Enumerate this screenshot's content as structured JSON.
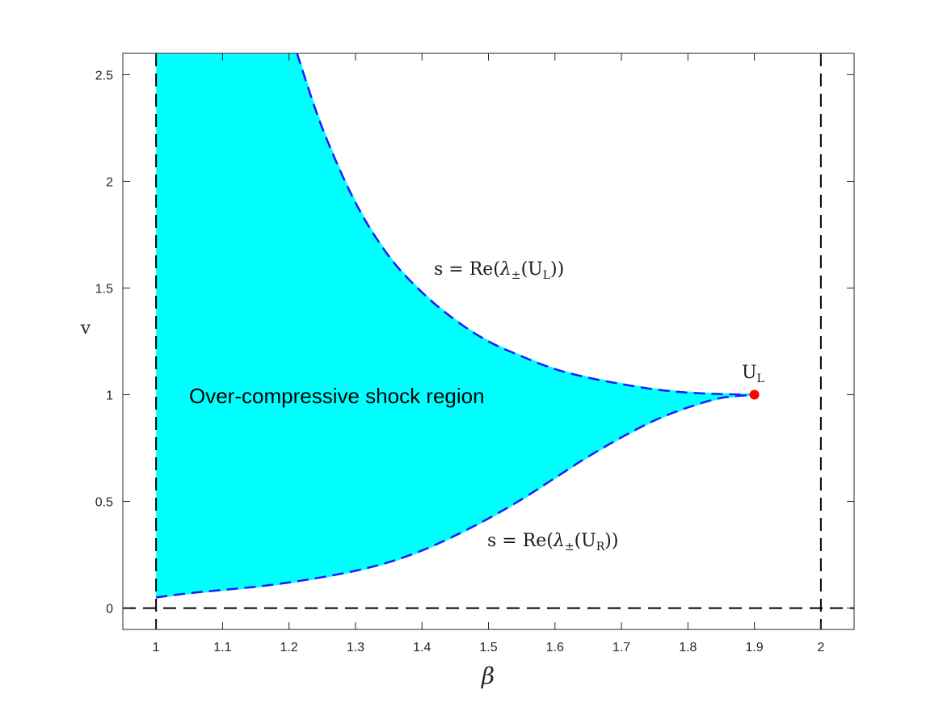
{
  "chart_data": {
    "type": "area",
    "xlabel": "β",
    "ylabel": "v",
    "xlim": [
      0.95,
      2.05
    ],
    "ylim": [
      -0.1,
      2.6
    ],
    "x_ticks": [
      "1",
      "1.1",
      "1.2",
      "1.3",
      "1.4",
      "1.5",
      "1.6",
      "1.7",
      "1.8",
      "1.9",
      "2"
    ],
    "y_ticks": [
      "0",
      "0.5",
      "1",
      "1.5",
      "2",
      "2.5"
    ],
    "grid": false,
    "colors": {
      "fill": "#00ffff",
      "boundary": "#1a1aff",
      "point": "#ff0000",
      "reference": "#000000"
    },
    "reference_lines": [
      {
        "orientation": "vertical",
        "x": 1
      },
      {
        "orientation": "vertical",
        "x": 2
      },
      {
        "orientation": "horizontal",
        "y": 0
      }
    ],
    "upper_curve": {
      "label": "s = Re(λ±(UL))",
      "x": [
        1.212,
        1.25,
        1.3,
        1.35,
        1.4,
        1.45,
        1.5,
        1.55,
        1.6,
        1.65,
        1.7,
        1.75,
        1.8,
        1.85,
        1.9
      ],
      "y": [
        2.6,
        2.25,
        1.9,
        1.65,
        1.48,
        1.35,
        1.25,
        1.18,
        1.12,
        1.08,
        1.05,
        1.025,
        1.01,
        1.003,
        1.0
      ]
    },
    "lower_curve": {
      "label": "s = Re(λ±(UR))",
      "x": [
        1.0,
        1.05,
        1.1,
        1.15,
        1.2,
        1.25,
        1.3,
        1.35,
        1.4,
        1.45,
        1.5,
        1.55,
        1.6,
        1.65,
        1.7,
        1.75,
        1.8,
        1.85,
        1.9
      ],
      "y": [
        0.05,
        0.07,
        0.085,
        0.1,
        0.12,
        0.145,
        0.175,
        0.215,
        0.27,
        0.34,
        0.42,
        0.51,
        0.61,
        0.71,
        0.8,
        0.88,
        0.94,
        0.985,
        1.0
      ]
    },
    "point": {
      "label": "UL",
      "x": 1.9,
      "y": 1.0
    },
    "annotations": [
      {
        "text": "Over-compressive shock region",
        "x": 1.05,
        "y": 1.0
      }
    ]
  }
}
